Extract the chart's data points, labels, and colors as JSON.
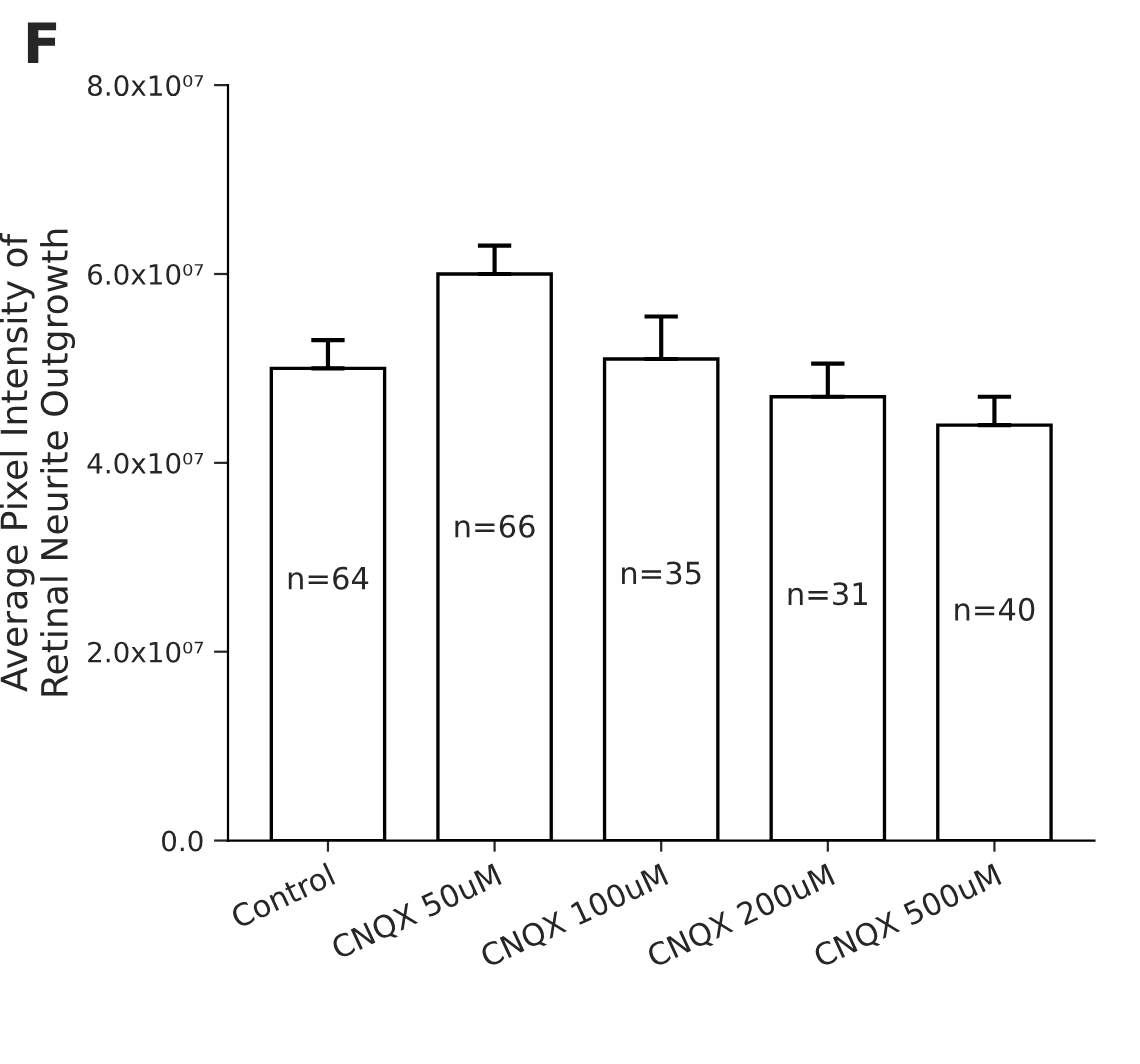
{
  "chart_data": {
    "type": "bar",
    "title": "F",
    "ylabel": "Average Pixel Intensity of\nRetinal Neurite Outgrowth",
    "categories": [
      "Control",
      "CNQX 50uM",
      "CNQX 100uM",
      "CNQX 200uM",
      "CNQX 500uM"
    ],
    "values": [
      50000000,
      60000000,
      51000000,
      47000000,
      44000000
    ],
    "errors": [
      [
        50000000,
        53000000
      ],
      [
        60000000,
        63000000
      ],
      [
        51000000,
        55500000
      ],
      [
        47000000,
        50500000
      ],
      [
        44000000,
        47000000
      ]
    ],
    "color": "#ffffff",
    "ylim": [
      0,
      80000000
    ],
    "yticks": [
      {
        "value": 0,
        "label": "0.0"
      },
      {
        "value": 20000000,
        "label": "2.0x10⁰⁷"
      },
      {
        "value": 40000000,
        "label": "4.0x10⁰⁷"
      },
      {
        "value": 60000000,
        "label": "6.0x10⁰⁷"
      },
      {
        "value": 80000000,
        "label": "8.0x10⁰⁷"
      }
    ],
    "annotations": [
      "n=64",
      "n=66",
      "n=35",
      "n=31",
      "n=40"
    ],
    "grid": false
  }
}
